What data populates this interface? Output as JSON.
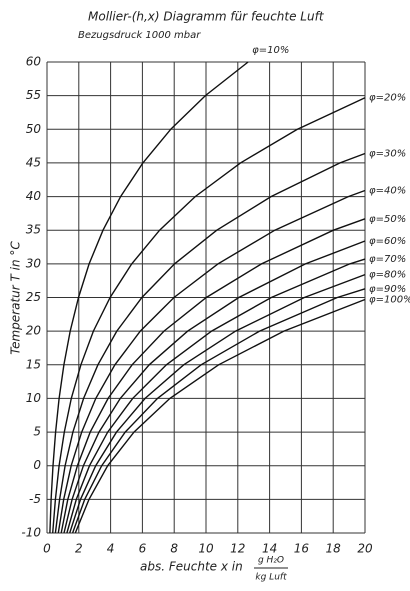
{
  "chart_data": {
    "type": "line",
    "title": "Mollier-(h,x) Diagramm für feuchte Luft",
    "subtitle": "Bezugsdruck 1000 mbar",
    "y_label": "Temperatur T in °C",
    "x_label": "abs. Feuchte x in",
    "x_unit_numerator": "g H₂O",
    "x_unit_denominator": "kg Luft",
    "xlim": [
      0,
      20
    ],
    "ylim": [
      -10,
      60
    ],
    "xticks": [
      0,
      2,
      4,
      6,
      8,
      10,
      12,
      14,
      16,
      18,
      20
    ],
    "yticks": [
      -10,
      -5,
      0,
      5,
      10,
      15,
      20,
      25,
      30,
      35,
      40,
      45,
      50,
      55,
      60
    ],
    "grid": true,
    "color": "#111111",
    "series": [
      {
        "name": "φ=10%",
        "x": [
          0.18,
          0.26,
          0.38,
          0.54,
          0.76,
          1.06,
          1.46,
          1.98,
          2.65,
          3.52,
          4.63,
          6.03,
          7.78,
          9.96,
          12.65
        ],
        "values": [
          -10,
          -5,
          0,
          5,
          10,
          15,
          20,
          25,
          30,
          35,
          40,
          45,
          50,
          55,
          60
        ]
      },
      {
        "name": "φ=20%",
        "x": [
          0.36,
          0.53,
          0.76,
          1.09,
          1.53,
          2.13,
          2.92,
          3.97,
          5.33,
          7.08,
          9.32,
          12.17,
          15.75,
          20
        ],
        "values": [
          -10,
          -5,
          0,
          5,
          10,
          15,
          20,
          25,
          30,
          35,
          40,
          45,
          50,
          54.7
        ]
      },
      {
        "name": "φ=30%",
        "x": [
          0.53,
          0.79,
          1.14,
          1.63,
          2.3,
          3.2,
          4.39,
          5.97,
          8.02,
          10.68,
          14.09,
          18.43,
          20
        ],
        "values": [
          -10,
          -5,
          0,
          5,
          10,
          15,
          20,
          25,
          30,
          35,
          40,
          45,
          46.4
        ]
      },
      {
        "name": "φ=40%",
        "x": [
          0.71,
          1.05,
          1.52,
          2.18,
          3.07,
          4.27,
          5.87,
          7.99,
          10.75,
          14.33,
          18.95,
          20
        ],
        "values": [
          -10,
          -5,
          0,
          5,
          10,
          15,
          20,
          25,
          30,
          35,
          40,
          40.9
        ]
      },
      {
        "name": "φ=50%",
        "x": [
          0.89,
          1.31,
          1.91,
          2.72,
          3.84,
          5.35,
          7.36,
          10.02,
          13.49,
          18.01,
          20
        ],
        "values": [
          -10,
          -5,
          0,
          5,
          10,
          15,
          20,
          25,
          30,
          35,
          36.7
        ]
      },
      {
        "name": "φ=60%",
        "x": [
          1.07,
          1.58,
          2.29,
          3.27,
          4.61,
          6.43,
          8.85,
          12.06,
          16.25,
          20
        ],
        "values": [
          -10,
          -5,
          0,
          5,
          10,
          15,
          20,
          25,
          30,
          33.4
        ]
      },
      {
        "name": "φ=70%",
        "x": [
          1.25,
          1.84,
          2.67,
          3.82,
          5.39,
          7.51,
          10.35,
          14.11,
          19.04,
          20
        ],
        "values": [
          -10,
          -5,
          0,
          5,
          10,
          15,
          20,
          25,
          30,
          30.7
        ]
      },
      {
        "name": "φ=80%",
        "x": [
          1.43,
          2.11,
          3.06,
          4.37,
          6.17,
          8.6,
          11.86,
          16.18,
          20
        ],
        "values": [
          -10,
          -5,
          0,
          5,
          10,
          15,
          20,
          25,
          28.4
        ]
      },
      {
        "name": "φ=90%",
        "x": [
          1.61,
          2.37,
          3.44,
          4.92,
          6.95,
          9.69,
          13.37,
          18.26,
          20
        ],
        "values": [
          -10,
          -5,
          0,
          5,
          10,
          15,
          20,
          25,
          26.3
        ]
      },
      {
        "name": "φ=100%",
        "x": [
          1.78,
          2.64,
          3.82,
          5.47,
          7.73,
          10.79,
          14.9,
          20
        ],
        "values": [
          -10,
          -5,
          0,
          5,
          10,
          15,
          20,
          24.7
        ]
      }
    ]
  }
}
